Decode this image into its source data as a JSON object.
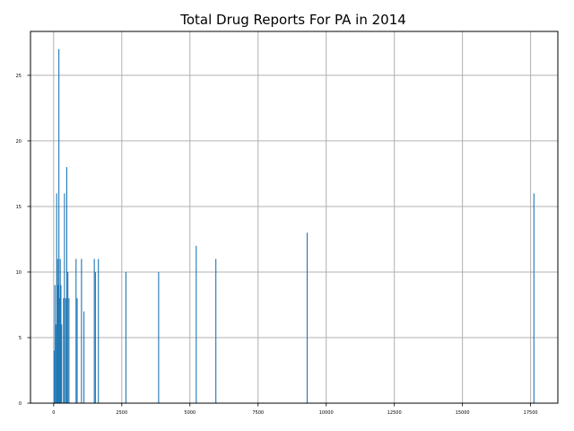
{
  "chart_data": {
    "type": "bar",
    "title": "Total Drug Reports For PA in 2014",
    "xlabel": "",
    "ylabel": "",
    "xlim": [
      -850,
      18500
    ],
    "ylim": [
      0,
      28.35
    ],
    "x_ticks": [
      0,
      2500,
      5000,
      7500,
      10000,
      12500,
      15000,
      17500
    ],
    "y_ticks": [
      0,
      5,
      10,
      15,
      20,
      25
    ],
    "grid": true,
    "bar_color": "#1f77b4",
    "points": [
      {
        "x": 20,
        "y": 4
      },
      {
        "x": 45,
        "y": 9
      },
      {
        "x": 80,
        "y": 6
      },
      {
        "x": 110,
        "y": 16
      },
      {
        "x": 140,
        "y": 11
      },
      {
        "x": 165,
        "y": 9
      },
      {
        "x": 190,
        "y": 27
      },
      {
        "x": 215,
        "y": 8
      },
      {
        "x": 240,
        "y": 11
      },
      {
        "x": 265,
        "y": 9
      },
      {
        "x": 290,
        "y": 6
      },
      {
        "x": 360,
        "y": 8
      },
      {
        "x": 395,
        "y": 16
      },
      {
        "x": 440,
        "y": 8
      },
      {
        "x": 480,
        "y": 18
      },
      {
        "x": 520,
        "y": 10
      },
      {
        "x": 560,
        "y": 8
      },
      {
        "x": 820,
        "y": 11
      },
      {
        "x": 860,
        "y": 8
      },
      {
        "x": 1020,
        "y": 11
      },
      {
        "x": 1110,
        "y": 7
      },
      {
        "x": 1490,
        "y": 11
      },
      {
        "x": 1530,
        "y": 10
      },
      {
        "x": 1640,
        "y": 11
      },
      {
        "x": 2650,
        "y": 10
      },
      {
        "x": 3850,
        "y": 10
      },
      {
        "x": 5230,
        "y": 12
      },
      {
        "x": 5950,
        "y": 11
      },
      {
        "x": 9300,
        "y": 13
      },
      {
        "x": 17620,
        "y": 16
      }
    ]
  }
}
